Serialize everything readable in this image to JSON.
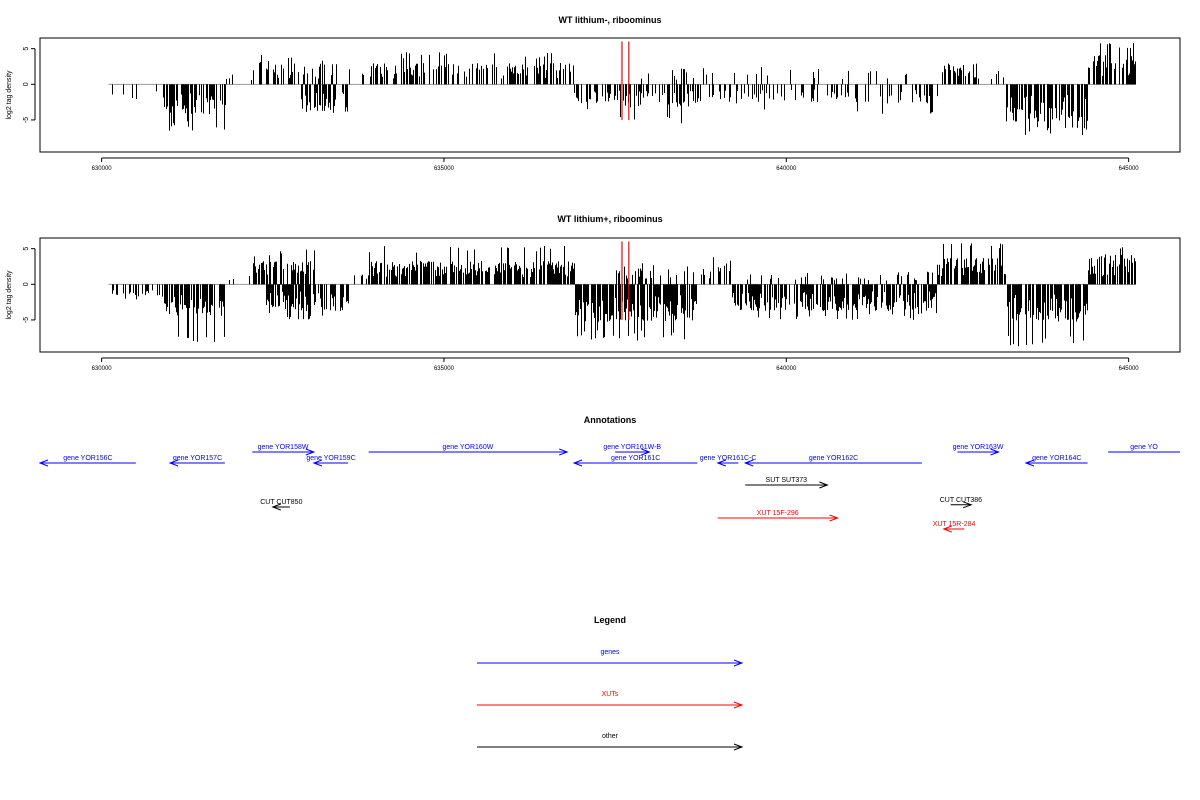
{
  "colors": {
    "bars": "#000000",
    "highlight": "#ff0000",
    "gene": "#0000ff",
    "xut": "#ff0000",
    "other": "#000000",
    "axis": "#000000",
    "baseline": "#999999"
  },
  "chart_data": [
    {
      "type": "bar",
      "title": "WT lithium-, riboominus",
      "ylabel": "log2 tag density",
      "xlim": [
        629100,
        645750
      ],
      "ylim": [
        -9.5,
        6.5
      ],
      "x_ticks": [
        630000,
        635000,
        640000,
        645000
      ],
      "x_tick_labels": [
        "630000",
        "635000",
        "640000",
        "645000"
      ],
      "y_ticks": [
        -5,
        0,
        5
      ],
      "y_tick_labels": [
        "-5",
        "0",
        "5"
      ],
      "x_range": [
        630100,
        645100
      ],
      "segments": [
        {
          "from": 630100,
          "to": 630900,
          "sign": -1,
          "density": 0.08,
          "mean": 1.5,
          "max": 2.5
        },
        {
          "from": 630900,
          "to": 631800,
          "sign": -1,
          "density": 0.9,
          "mean": 2.8,
          "max": 6.5
        },
        {
          "from": 631800,
          "to": 632200,
          "sign": 1,
          "density": 0.1,
          "mean": 1.0,
          "max": 1.5
        },
        {
          "from": 632200,
          "to": 632900,
          "sign": 1,
          "density": 0.5,
          "mean": 2.2,
          "max": 4.2
        },
        {
          "from": 632900,
          "to": 633600,
          "sign": -1,
          "density": 0.6,
          "mean": 2.8,
          "max": 4.3
        },
        {
          "from": 632900,
          "to": 633500,
          "sign": 1,
          "density": 0.25,
          "mean": 2.0,
          "max": 3.5
        },
        {
          "from": 633600,
          "to": 633900,
          "sign": 1,
          "density": 0.1,
          "mean": 1.5,
          "max": 2.5
        },
        {
          "from": 633900,
          "to": 636900,
          "sign": 1,
          "density": 0.5,
          "mean": 2.0,
          "max": 4.5
        },
        {
          "from": 636900,
          "to": 637500,
          "sign": -1,
          "density": 0.5,
          "mean": 1.8,
          "max": 4.0
        },
        {
          "from": 637500,
          "to": 638700,
          "sign": -1,
          "density": 0.45,
          "mean": 2.2,
          "max": 5.5
        },
        {
          "from": 637700,
          "to": 638700,
          "sign": 1,
          "density": 0.1,
          "mean": 1.5,
          "max": 3.0
        },
        {
          "from": 638700,
          "to": 642200,
          "sign": -1,
          "density": 0.25,
          "mean": 1.8,
          "max": 4.2
        },
        {
          "from": 638700,
          "to": 642200,
          "sign": 1,
          "density": 0.06,
          "mean": 1.5,
          "max": 3.0
        },
        {
          "from": 642200,
          "to": 642800,
          "sign": 1,
          "density": 0.5,
          "mean": 2.0,
          "max": 4.0
        },
        {
          "from": 642800,
          "to": 643200,
          "sign": 1,
          "density": 0.1,
          "mean": 1.2,
          "max": 2.0
        },
        {
          "from": 643200,
          "to": 644400,
          "sign": -1,
          "density": 1.0,
          "mean": 3.5,
          "max": 7.5
        },
        {
          "from": 644400,
          "to": 645100,
          "sign": 1,
          "density": 0.9,
          "mean": 2.8,
          "max": 5.8
        }
      ],
      "highlight_x": [
        637600,
        637700
      ],
      "highlight_top": 6.0
    },
    {
      "type": "bar",
      "title": "WT lithium+, riboominus",
      "ylabel": "log2 tag density",
      "xlim": [
        629100,
        645750
      ],
      "ylim": [
        -9.5,
        6.5
      ],
      "x_ticks": [
        630000,
        635000,
        640000,
        645000
      ],
      "x_tick_labels": [
        "630000",
        "635000",
        "640000",
        "645000"
      ],
      "y_ticks": [
        -5,
        0,
        5
      ],
      "y_tick_labels": [
        "-5",
        "0",
        "5"
      ],
      "x_range": [
        630100,
        645100
      ],
      "segments": [
        {
          "from": 630100,
          "to": 630900,
          "sign": -1,
          "density": 0.3,
          "mean": 1.2,
          "max": 2.5
        },
        {
          "from": 630900,
          "to": 631800,
          "sign": -1,
          "density": 1.0,
          "mean": 3.0,
          "max": 8.2
        },
        {
          "from": 631800,
          "to": 632200,
          "sign": 1,
          "density": 0.1,
          "mean": 1.0,
          "max": 2.0
        },
        {
          "from": 632200,
          "to": 633100,
          "sign": 1,
          "density": 0.8,
          "mean": 2.2,
          "max": 4.9
        },
        {
          "from": 632400,
          "to": 633600,
          "sign": -1,
          "density": 0.8,
          "mean": 2.5,
          "max": 5.0
        },
        {
          "from": 633600,
          "to": 633900,
          "sign": 1,
          "density": 0.2,
          "mean": 1.2,
          "max": 2.0
        },
        {
          "from": 633900,
          "to": 636900,
          "sign": 1,
          "density": 1.0,
          "mean": 2.2,
          "max": 5.5
        },
        {
          "from": 636900,
          "to": 638700,
          "sign": -1,
          "density": 1.0,
          "mean": 3.5,
          "max": 8.0
        },
        {
          "from": 637500,
          "to": 638700,
          "sign": 1,
          "density": 0.25,
          "mean": 1.5,
          "max": 3.0
        },
        {
          "from": 638700,
          "to": 639200,
          "sign": 1,
          "density": 0.4,
          "mean": 2.0,
          "max": 4.0
        },
        {
          "from": 639200,
          "to": 642200,
          "sign": -1,
          "density": 0.9,
          "mean": 2.5,
          "max": 5.0
        },
        {
          "from": 639200,
          "to": 642200,
          "sign": 1,
          "density": 0.12,
          "mean": 1.2,
          "max": 2.5
        },
        {
          "from": 642200,
          "to": 643200,
          "sign": 1,
          "density": 0.9,
          "mean": 2.5,
          "max": 6.0
        },
        {
          "from": 643200,
          "to": 644400,
          "sign": -1,
          "density": 1.0,
          "mean": 3.5,
          "max": 8.8
        },
        {
          "from": 644400,
          "to": 645100,
          "sign": 1,
          "density": 1.0,
          "mean": 2.8,
          "max": 5.8
        }
      ],
      "highlight_x": [
        637600,
        637700
      ],
      "highlight_top": 6.0
    }
  ],
  "annotations": {
    "title": "Annotations",
    "xlim": [
      629100,
      645750
    ],
    "items": [
      {
        "label": "gene YOR156C",
        "kind": "gene",
        "from": 629100,
        "to": 630500,
        "dir": "rev",
        "row": 1
      },
      {
        "label": "gene YOR157C",
        "kind": "gene",
        "from": 631000,
        "to": 631800,
        "dir": "rev",
        "row": 1
      },
      {
        "label": "gene YOR158W",
        "kind": "gene",
        "from": 632200,
        "to": 633100,
        "dir": "fwd",
        "row": 0
      },
      {
        "label": "gene YOR159C",
        "kind": "gene",
        "from": 633100,
        "to": 633600,
        "dir": "rev",
        "row": 1
      },
      {
        "label": "gene YOR160W",
        "kind": "gene",
        "from": 633900,
        "to": 636800,
        "dir": "fwd",
        "row": 0
      },
      {
        "label": "gene YOR161W-B",
        "kind": "gene",
        "from": 637500,
        "to": 638000,
        "dir": "fwd",
        "row": 0
      },
      {
        "label": "gene YOR161C",
        "kind": "gene",
        "from": 636900,
        "to": 638700,
        "dir": "rev",
        "row": 1
      },
      {
        "label": "gene YOR161C-C",
        "kind": "gene",
        "from": 639000,
        "to": 639300,
        "dir": "rev",
        "row": 1
      },
      {
        "label": "gene YOR162C",
        "kind": "gene",
        "from": 639400,
        "to": 641980,
        "dir": "rev",
        "row": 1
      },
      {
        "label": "gene YOR163W",
        "kind": "gene",
        "from": 642500,
        "to": 643100,
        "dir": "fwd",
        "row": 0
      },
      {
        "label": "gene YOR164C",
        "kind": "gene",
        "from": 643500,
        "to": 644400,
        "dir": "rev",
        "row": 1
      },
      {
        "label": "gene YO",
        "kind": "gene",
        "from": 644700,
        "to": 645750,
        "dir": "none",
        "row": 0
      },
      {
        "label": "SUT SUT373",
        "kind": "other",
        "from": 639400,
        "to": 640600,
        "dir": "fwd",
        "row": 3
      },
      {
        "label": "CUT CUT850",
        "kind": "other",
        "from": 632500,
        "to": 632750,
        "dir": "rev",
        "row": 5
      },
      {
        "label": "CUT CUT386",
        "kind": "other",
        "from": 642400,
        "to": 642700,
        "dir": "fwd",
        "row": 4.8
      },
      {
        "label": "XUT 15F-296",
        "kind": "xut",
        "from": 639000,
        "to": 640750,
        "dir": "fwd",
        "row": 6
      },
      {
        "label": "XUT 15R-284",
        "kind": "xut",
        "from": 642300,
        "to": 642600,
        "dir": "rev",
        "row": 7
      }
    ]
  },
  "legend": {
    "title": "Legend",
    "items": [
      {
        "label": "genes",
        "kind": "gene"
      },
      {
        "label": "XUTs",
        "kind": "xut"
      },
      {
        "label": "other",
        "kind": "other"
      }
    ]
  }
}
